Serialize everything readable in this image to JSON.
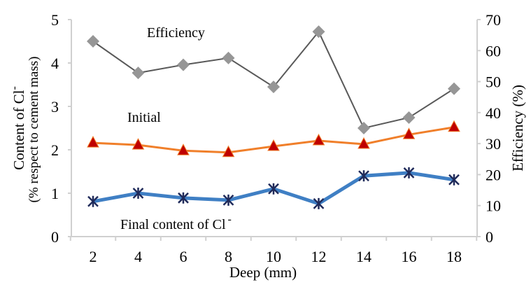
{
  "chart_data": {
    "type": "line",
    "xlabel": "Deep (mm)",
    "ylabel_left_line1": "Content of Cl",
    "ylabel_left_sup": "-",
    "ylabel_left_line2": "(% respect to cement mass)",
    "ylabel_right": "Efficiency (%)",
    "x": [
      2,
      4,
      6,
      8,
      10,
      12,
      14,
      16,
      18
    ],
    "ylim_left": [
      0,
      5
    ],
    "yticks_left": [
      "0",
      "1",
      "2",
      "3",
      "4",
      "5"
    ],
    "ylim_right": [
      0,
      70
    ],
    "yticks_right": [
      "0",
      "10",
      "20",
      "30",
      "40",
      "50",
      "60",
      "70"
    ],
    "xticks": [
      "2",
      "4",
      "6",
      "8",
      "10",
      "12",
      "14",
      "16",
      "18"
    ],
    "grid": false,
    "series": [
      {
        "name": "Efficiency",
        "axis": "right",
        "color": "#595959",
        "marker": "diamond",
        "marker_color": "#969696",
        "values": [
          63.0,
          52.8,
          55.4,
          57.6,
          48.3,
          66.1,
          35.0,
          38.4,
          47.7
        ]
      },
      {
        "name": "Initial",
        "axis": "left",
        "color": "#f07f2a",
        "marker": "triangle",
        "marker_color": "#c00000",
        "values": [
          2.16,
          2.11,
          1.98,
          1.94,
          2.08,
          2.21,
          2.13,
          2.35,
          2.52
        ]
      },
      {
        "name": "Final content of Cl",
        "name_sup": "-",
        "axis": "left",
        "color": "#3f7fc4",
        "marker": "asterisk",
        "marker_color": "#1f2a5a",
        "values": [
          0.81,
          1.0,
          0.89,
          0.84,
          1.1,
          0.76,
          1.4,
          1.47,
          1.31
        ]
      }
    ]
  }
}
